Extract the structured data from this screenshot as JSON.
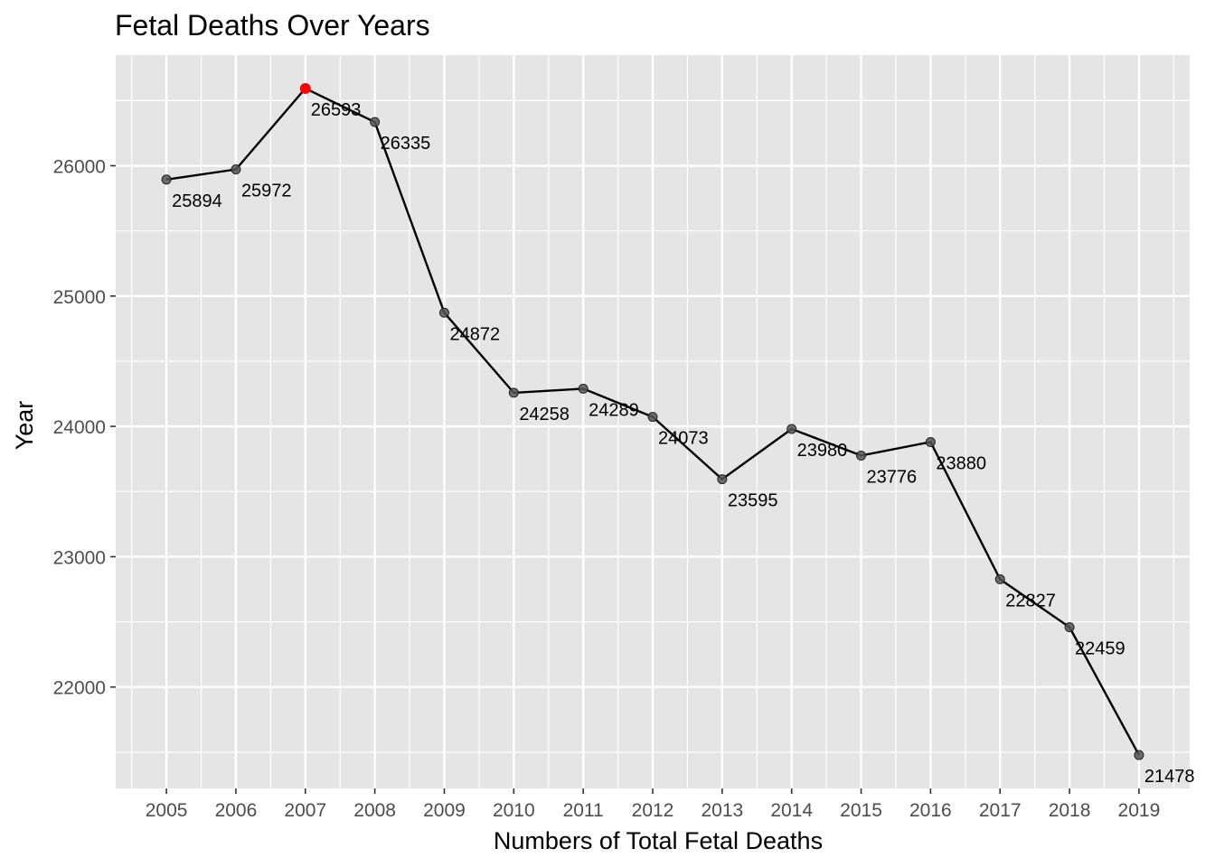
{
  "chart_data": {
    "type": "line",
    "title": "Fetal Deaths Over Years",
    "xlabel": "Numbers of Total Fetal Deaths",
    "ylabel": "Year",
    "x": [
      2005,
      2006,
      2007,
      2008,
      2009,
      2010,
      2011,
      2012,
      2013,
      2014,
      2015,
      2016,
      2017,
      2018,
      2019
    ],
    "values": [
      25894,
      25972,
      26593,
      26335,
      24872,
      24258,
      24289,
      24073,
      23595,
      23980,
      23776,
      23880,
      22827,
      22459,
      21478
    ],
    "x_tick_labels": [
      "2005",
      "2006",
      "2007",
      "2008",
      "2009",
      "2010",
      "2011",
      "2012",
      "2013",
      "2014",
      "2015",
      "2016",
      "2017",
      "2018",
      "2019"
    ],
    "y_ticks": [
      22000,
      23000,
      24000,
      25000,
      26000
    ],
    "y_tick_labels": [
      "22000",
      "23000",
      "24000",
      "25000",
      "26000"
    ],
    "xlim": [
      2004.27,
      2019.73
    ],
    "ylim": [
      21222,
      26849
    ],
    "highlight_x": 2007,
    "grid": true,
    "legend": "none",
    "colors": {
      "panel_background": "#e5e5e5",
      "grid": "#ffffff",
      "line": "#000000",
      "point": "#555555",
      "highlight": "#ff0000"
    }
  }
}
